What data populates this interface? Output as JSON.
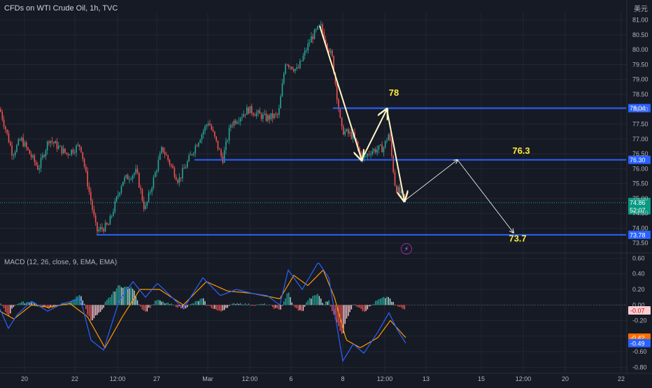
{
  "header": {
    "symbol_title": "CFDs on WTI Crude Oil, 1h, TVC",
    "currency": "美元",
    "macd_label": "MACD (12, 26, close, 9, EMA, EMA)"
  },
  "colors": {
    "background": "#161a25",
    "grid": "#232733",
    "up_candle": "#26a69a",
    "down_candle": "#ef5350",
    "level_line": "#2962ff",
    "annotation_text": "#ffeb3b",
    "arrow_thick": "#fff9c4",
    "arrow_thin": "#ffffff",
    "macd_line": "#2962ff",
    "signal_line": "#ff9800"
  },
  "icons": {
    "alert": "lightning-icon"
  },
  "chart_data": [
    {
      "type": "candlestick",
      "title": "CFDs on WTI Crude Oil, 1h, TVC",
      "y_ticks": [
        "81.00",
        "80.50",
        "80.00",
        "79.50",
        "79.00",
        "78.50",
        "78.00",
        "77.50",
        "77.00",
        "76.50",
        "76.00",
        "75.50",
        "75.00",
        "74.50",
        "74.00",
        "73.50"
      ],
      "x_ticks": [
        "20",
        "22",
        "12:00",
        "27",
        "Mar",
        "12:00",
        "6",
        "8",
        "12:00",
        "13",
        "15",
        "12:00",
        "20",
        "22"
      ],
      "ylim": [
        73.4,
        81.25
      ],
      "grid": true,
      "path_anchors": [
        {
          "x": 0,
          "y": 78.0
        },
        {
          "x": 18,
          "y": 76.5
        },
        {
          "x": 30,
          "y": 77.0
        },
        {
          "x": 55,
          "y": 76.0
        },
        {
          "x": 70,
          "y": 77.0
        },
        {
          "x": 95,
          "y": 76.5
        },
        {
          "x": 115,
          "y": 76.8
        },
        {
          "x": 138,
          "y": 73.9
        },
        {
          "x": 155,
          "y": 74.1
        },
        {
          "x": 175,
          "y": 75.6
        },
        {
          "x": 195,
          "y": 75.9
        },
        {
          "x": 207,
          "y": 74.6
        },
        {
          "x": 232,
          "y": 76.7
        },
        {
          "x": 255,
          "y": 75.6
        },
        {
          "x": 280,
          "y": 76.8
        },
        {
          "x": 298,
          "y": 77.6
        },
        {
          "x": 318,
          "y": 76.3
        },
        {
          "x": 330,
          "y": 77.5
        },
        {
          "x": 355,
          "y": 78.0
        },
        {
          "x": 380,
          "y": 77.7
        },
        {
          "x": 398,
          "y": 77.8
        },
        {
          "x": 408,
          "y": 79.6
        },
        {
          "x": 425,
          "y": 79.3
        },
        {
          "x": 445,
          "y": 80.4
        },
        {
          "x": 458,
          "y": 80.8
        },
        {
          "x": 475,
          "y": 79.7
        },
        {
          "x": 488,
          "y": 77.3
        },
        {
          "x": 505,
          "y": 77.1
        },
        {
          "x": 518,
          "y": 76.3
        },
        {
          "x": 530,
          "y": 76.6
        },
        {
          "x": 548,
          "y": 76.7
        },
        {
          "x": 556,
          "y": 77.2
        },
        {
          "x": 565,
          "y": 75.4
        },
        {
          "x": 580,
          "y": 74.9
        }
      ],
      "levels": [
        {
          "value": 78.04,
          "label": "78.04",
          "x_start": 476
        },
        {
          "value": 76.3,
          "label": "76.30",
          "x_start": 278
        },
        {
          "value": 73.78,
          "label": "73.78",
          "x_start": 138
        }
      ],
      "current_price": {
        "value": 74.86,
        "label": "74.86",
        "countdown": "52:07"
      },
      "annotations": [
        {
          "text": "78",
          "x": 563,
          "y": 78.45
        },
        {
          "text": "76.3",
          "x": 745,
          "y": 76.5
        },
        {
          "text": "73.7",
          "x": 740,
          "y": 73.55
        }
      ],
      "arrows_thick": [
        {
          "from": [
            457,
            80.8
          ],
          "to": [
            517,
            76.3
          ]
        },
        {
          "from": [
            517,
            76.3
          ],
          "to": [
            553,
            78.0
          ]
        },
        {
          "from": [
            553,
            78.0
          ],
          "to": [
            578,
            74.92
          ]
        }
      ],
      "arrows_thin": [
        {
          "from": [
            578,
            74.92
          ],
          "to": [
            654,
            76.3
          ]
        },
        {
          "from": [
            654,
            76.3
          ],
          "to": [
            734,
            73.85
          ]
        }
      ]
    },
    {
      "type": "histogram",
      "title": "MACD (12, 26, close, 9, EMA, EMA)",
      "y_ticks": [
        "0.60",
        "0.40",
        "0.20",
        "0.00",
        "-0.20",
        "-0.40",
        "-0.60",
        "-0.80"
      ],
      "ylim": [
        -0.86,
        0.64
      ],
      "macd_anchors": [
        {
          "x": 0,
          "y": -0.05
        },
        {
          "x": 12,
          "y": -0.3
        },
        {
          "x": 25,
          "y": -0.12
        },
        {
          "x": 45,
          "y": 0.05
        },
        {
          "x": 68,
          "y": -0.08
        },
        {
          "x": 90,
          "y": 0.02
        },
        {
          "x": 115,
          "y": 0.08
        },
        {
          "x": 130,
          "y": -0.45
        },
        {
          "x": 148,
          "y": -0.58
        },
        {
          "x": 170,
          "y": 0.05
        },
        {
          "x": 190,
          "y": 0.3
        },
        {
          "x": 208,
          "y": 0.1
        },
        {
          "x": 225,
          "y": 0.28
        },
        {
          "x": 248,
          "y": 0.08
        },
        {
          "x": 262,
          "y": -0.05
        },
        {
          "x": 290,
          "y": 0.35
        },
        {
          "x": 315,
          "y": 0.12
        },
        {
          "x": 338,
          "y": 0.2
        },
        {
          "x": 360,
          "y": 0.15
        },
        {
          "x": 382,
          "y": 0.12
        },
        {
          "x": 400,
          "y": 0.0
        },
        {
          "x": 412,
          "y": 0.45
        },
        {
          "x": 432,
          "y": 0.2
        },
        {
          "x": 455,
          "y": 0.55
        },
        {
          "x": 470,
          "y": 0.35
        },
        {
          "x": 490,
          "y": -0.72
        },
        {
          "x": 505,
          "y": -0.5
        },
        {
          "x": 520,
          "y": -0.62
        },
        {
          "x": 540,
          "y": -0.35
        },
        {
          "x": 556,
          "y": -0.1
        },
        {
          "x": 568,
          "y": -0.32
        },
        {
          "x": 580,
          "y": -0.49
        }
      ],
      "signal_anchors": [
        {
          "x": 0,
          "y": -0.08
        },
        {
          "x": 20,
          "y": -0.18
        },
        {
          "x": 45,
          "y": 0.0
        },
        {
          "x": 70,
          "y": -0.03
        },
        {
          "x": 100,
          "y": 0.02
        },
        {
          "x": 125,
          "y": -0.15
        },
        {
          "x": 150,
          "y": -0.55
        },
        {
          "x": 175,
          "y": -0.15
        },
        {
          "x": 200,
          "y": 0.2
        },
        {
          "x": 228,
          "y": 0.2
        },
        {
          "x": 262,
          "y": 0.0
        },
        {
          "x": 295,
          "y": 0.3
        },
        {
          "x": 325,
          "y": 0.18
        },
        {
          "x": 360,
          "y": 0.15
        },
        {
          "x": 400,
          "y": 0.08
        },
        {
          "x": 420,
          "y": 0.38
        },
        {
          "x": 440,
          "y": 0.25
        },
        {
          "x": 462,
          "y": 0.45
        },
        {
          "x": 478,
          "y": 0.1
        },
        {
          "x": 495,
          "y": -0.45
        },
        {
          "x": 515,
          "y": -0.55
        },
        {
          "x": 540,
          "y": -0.42
        },
        {
          "x": 558,
          "y": -0.2
        },
        {
          "x": 580,
          "y": -0.42
        }
      ],
      "zero_line": true,
      "value_labels": [
        {
          "label": "-0.07",
          "value": -0.07,
          "fill": "#ffcdd2",
          "text": "#b71c1c"
        },
        {
          "label": "-0.42",
          "value": -0.42,
          "fill": "#ff6d00",
          "text": "#ffffff"
        },
        {
          "label": "-0.49",
          "value": -0.49,
          "fill": "#2962ff",
          "text": "#ffffff"
        }
      ]
    }
  ]
}
